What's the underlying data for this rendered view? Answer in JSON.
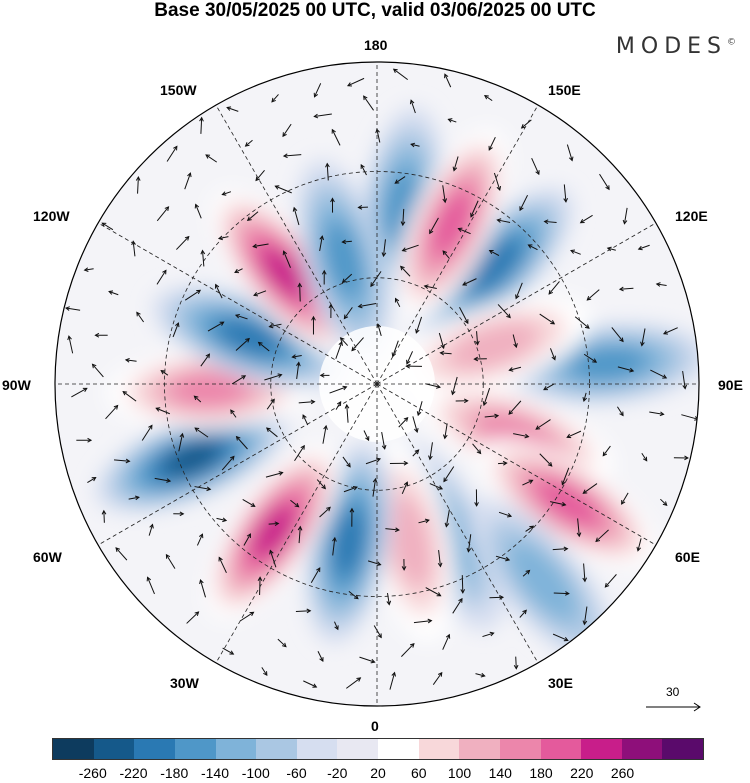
{
  "title": "Base 30/05/2025 00 UTC, valid 03/06/2025 00 UTC",
  "brand": "MODES",
  "brand_mark": "©",
  "longitude_labels": {
    "top": "180",
    "bottom": "0",
    "left": "90W",
    "right": "90E",
    "upper_left": "150W",
    "upper_right": "150E",
    "left_upper": "120W",
    "right_upper": "120E",
    "left_lower": "60W",
    "right_lower": "60E",
    "lower_left": "30W",
    "lower_right": "30E"
  },
  "reference_vector": "30",
  "colorbar": {
    "ticks": [
      "-260",
      "-220",
      "-180",
      "-140",
      "-100",
      "-60",
      "-20",
      "20",
      "60",
      "100",
      "140",
      "180",
      "220",
      "260"
    ],
    "colors": [
      "#0d3b5e",
      "#15598a",
      "#2a79b3",
      "#4f97c8",
      "#7fb3d9",
      "#aac7e3",
      "#d6def0",
      "#e8e8f2",
      "#ffffff",
      "#f8d8da",
      "#f0b0c0",
      "#ec86ab",
      "#e45a9c",
      "#c81e8a",
      "#8e0f7a",
      "#5a0a6b"
    ]
  },
  "map": {
    "projection": "north-polar-stereographic",
    "anomalies": [
      {
        "lon": 172,
        "r": 0.55,
        "v": -150
      },
      {
        "lon": 135,
        "r": 0.52,
        "v": -200
      },
      {
        "lon": 95,
        "r": 0.72,
        "v": -150
      },
      {
        "lon": 70,
        "r": 0.46,
        "v": 140
      },
      {
        "lon": 58,
        "r": 0.7,
        "v": 180
      },
      {
        "lon": 25,
        "r": 0.52,
        "v": -120
      },
      {
        "lon": 12,
        "r": 0.5,
        "v": 120
      },
      {
        "lon": -10,
        "r": 0.5,
        "v": -180
      },
      {
        "lon": -35,
        "r": 0.56,
        "v": 220
      },
      {
        "lon": -68,
        "r": 0.62,
        "v": -220
      },
      {
        "lon": -88,
        "r": 0.52,
        "v": 140
      },
      {
        "lon": -110,
        "r": 0.42,
        "v": -180
      },
      {
        "lon": -140,
        "r": 0.45,
        "v": 240
      },
      {
        "lon": 155,
        "r": 0.55,
        "v": 180
      },
      {
        "lon": 108,
        "r": 0.38,
        "v": 120
      },
      {
        "lon": -165,
        "r": 0.4,
        "v": -160
      },
      {
        "lon": 40,
        "r": 0.8,
        "v": -100
      }
    ]
  }
}
